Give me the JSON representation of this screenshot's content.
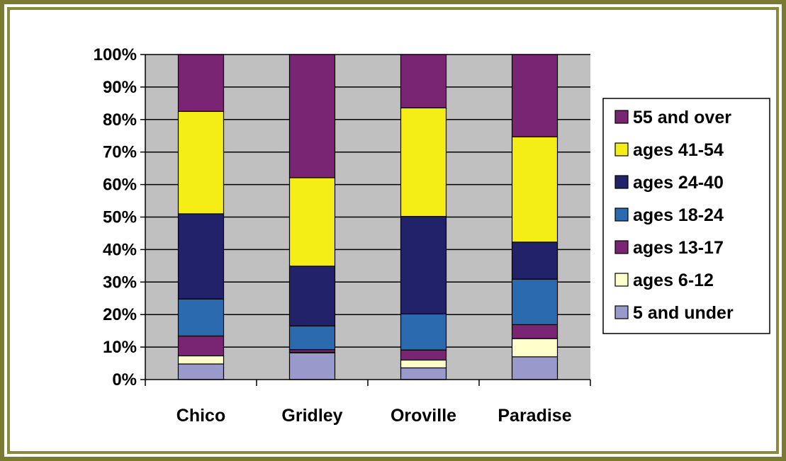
{
  "colors": {
    "frame_outer": "#7a7a30",
    "frame_inner": "#8a8a3a",
    "plot_bg": "#c0c0c0",
    "gridline": "#000000"
  },
  "chart_data": {
    "type": "bar",
    "stacked": true,
    "percent_stacked": true,
    "categories": [
      "Chico",
      "Gridley",
      "Oroville",
      "Paradise"
    ],
    "y_tick_labels": [
      "0%",
      "10%",
      "20%",
      "30%",
      "40%",
      "50%",
      "60%",
      "70%",
      "80%",
      "90%",
      "100%"
    ],
    "ylim": [
      0,
      100
    ],
    "grid": true,
    "legend_position": "right",
    "series": [
      {
        "name": "5 and under",
        "color": "#9999cc",
        "values": [
          4.8,
          8.2,
          3.6,
          7.0
        ]
      },
      {
        "name": "ages 6-12",
        "color": "#ffffcc",
        "values": [
          2.5,
          0.2,
          2.4,
          5.6
        ]
      },
      {
        "name": "ages 13-17",
        "color": "#7a2573",
        "values": [
          6.1,
          0.8,
          3.1,
          4.3
        ]
      },
      {
        "name": "ages 18-24",
        "color": "#2b6aaf",
        "values": [
          11.4,
          7.3,
          11.1,
          14.0
        ]
      },
      {
        "name": "ages 24-40",
        "color": "#22226b",
        "values": [
          26.2,
          18.4,
          30.0,
          11.4
        ]
      },
      {
        "name": "ages 41-54",
        "color": "#f5ed16",
        "values": [
          31.5,
          27.2,
          33.4,
          32.4
        ]
      },
      {
        "name": "55 and over",
        "color": "#7a2573",
        "values": [
          17.5,
          37.9,
          16.4,
          25.3
        ]
      }
    ]
  }
}
